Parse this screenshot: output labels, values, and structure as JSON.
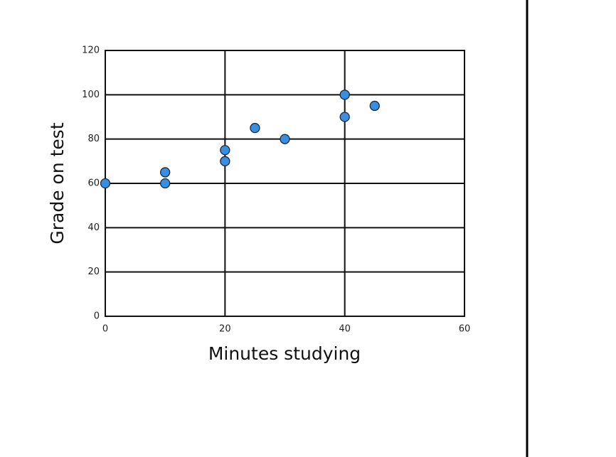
{
  "chart_data": {
    "type": "scatter",
    "x_label": "Minutes studying",
    "y_label": "Grade on test",
    "series": [
      {
        "color": "#3a8ee0",
        "x": [
          0,
          10,
          10,
          20,
          20,
          25,
          30,
          40,
          40,
          45
        ],
        "values": [
          60,
          65,
          60,
          75,
          70,
          85,
          80,
          100,
          90,
          95
        ]
      }
    ],
    "xlim": [
      0,
      60
    ],
    "xticks": [
      0,
      20,
      40,
      60
    ],
    "ylim": [
      0,
      120
    ],
    "yticks": [
      0,
      20,
      40,
      60,
      80,
      100,
      120
    ],
    "grid": true
  }
}
